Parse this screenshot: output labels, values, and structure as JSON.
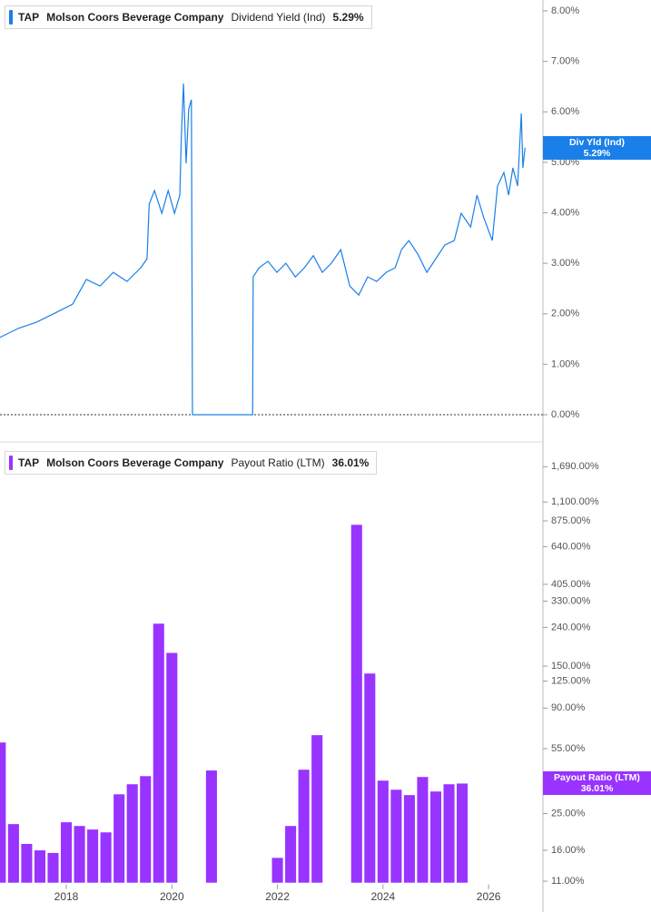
{
  "chart_data": [
    {
      "type": "line",
      "ticker": "TAP",
      "company": "Molson Coors Beverage Company",
      "x": [
        2016.74,
        2017.09,
        2017.43,
        2017.78,
        2018.12,
        2018.38,
        2018.64,
        2018.89,
        2019.15,
        2019.41,
        2019.53,
        2019.57,
        2019.67,
        2019.81,
        2019.93,
        2020.05,
        2020.15,
        2020.18,
        2020.22,
        2020.27,
        2020.32,
        2020.37,
        2020.39,
        2021.53,
        2021.54,
        2021.65,
        2021.82,
        2021.99,
        2022.16,
        2022.34,
        2022.51,
        2022.68,
        2022.85,
        2023.02,
        2023.2,
        2023.37,
        2023.54,
        2023.71,
        2023.88,
        2024.06,
        2024.23,
        2024.35,
        2024.49,
        2024.66,
        2024.83,
        2025.0,
        2025.17,
        2025.35,
        2025.48,
        2025.66,
        2025.78,
        2025.91,
        2026.07,
        2026.17,
        2026.29,
        2026.38,
        2026.46,
        2026.55,
        2026.62,
        2026.65,
        2026.69
      ],
      "series": [
        {
          "name": "Dividend Yield (Ind)",
          "short_name": "Div Yld (Ind)",
          "color": "#1a7fe8",
          "values": [
            1.53,
            1.71,
            1.83,
            2.01,
            2.19,
            2.68,
            2.55,
            2.82,
            2.64,
            2.91,
            3.09,
            4.17,
            4.44,
            3.99,
            4.44,
            3.99,
            4.35,
            5.52,
            6.56,
            4.98,
            6.06,
            6.24,
            0,
            0,
            2.73,
            2.91,
            3.04,
            2.82,
            3.0,
            2.73,
            2.91,
            3.15,
            2.82,
            3.0,
            3.27,
            2.55,
            2.37,
            2.73,
            2.64,
            2.82,
            2.91,
            3.27,
            3.45,
            3.18,
            2.82,
            3.09,
            3.36,
            3.45,
            3.99,
            3.72,
            4.35,
            3.9,
            3.45,
            4.53,
            4.8,
            4.35,
            4.89,
            4.53,
            5.97,
            4.89,
            5.29
          ],
          "last_value_label": "5.29%"
        }
      ],
      "xlim": [
        2016.744,
        2027.03
      ],
      "ylim": [
        0,
        8
      ],
      "yticks": [
        {
          "value": 0,
          "label": "0.00%"
        },
        {
          "value": 1,
          "label": "1.00%"
        },
        {
          "value": 2,
          "label": "2.00%"
        },
        {
          "value": 3,
          "label": "3.00%"
        },
        {
          "value": 4,
          "label": "4.00%"
        },
        {
          "value": 5,
          "label": "5.00%"
        },
        {
          "value": 6,
          "label": "6.00%"
        },
        {
          "value": 7,
          "label": "7.00%"
        },
        {
          "value": 8,
          "label": "8.00%"
        }
      ],
      "zero_line": true
    },
    {
      "type": "bar",
      "ticker": "TAP",
      "company": "Molson Coors Beverage Company",
      "x": [
        2016.75,
        2017.0,
        2017.25,
        2017.5,
        2017.75,
        2018.0,
        2018.25,
        2018.5,
        2018.75,
        2019.0,
        2019.25,
        2019.5,
        2019.75,
        2020.0,
        2020.25,
        2020.5,
        2020.75,
        2021.0,
        2021.25,
        2021.5,
        2021.75,
        2022.0,
        2022.25,
        2022.5,
        2022.75,
        2023.0,
        2023.25,
        2023.5,
        2023.75,
        2024.0,
        2024.25,
        2024.5,
        2024.75,
        2025.0,
        2025.25,
        2025.5
      ],
      "series": [
        {
          "name": "Payout Ratio (LTM)",
          "color": "#9933ff",
          "values": [
            59.3,
            22.0,
            17.3,
            16.0,
            15.5,
            22.5,
            21.5,
            20.6,
            19.9,
            31.6,
            35.7,
            39.4,
            251,
            176,
            null,
            null,
            42.2,
            null,
            null,
            null,
            null,
            14.6,
            21.5,
            42.6,
            64.8,
            null,
            null,
            834,
            137,
            37.3,
            33.4,
            31.3,
            39.0,
            32.7,
            35.7,
            36.01
          ],
          "last_value_label": "36.01%"
        }
      ],
      "xlim": [
        2016.744,
        2027.03
      ],
      "xticks": [
        2018,
        2020,
        2022,
        2024,
        2026
      ],
      "ylim": [
        10.8,
        2000
      ],
      "yscale": "log",
      "yticks": [
        {
          "value": 1690,
          "label": "1,690.00%"
        },
        {
          "value": 1100,
          "label": "1,100.00%"
        },
        {
          "value": 875,
          "label": "875.00%"
        },
        {
          "value": 640,
          "label": "640.00%"
        },
        {
          "value": 405,
          "label": "405.00%"
        },
        {
          "value": 330,
          "label": "330.00%"
        },
        {
          "value": 240,
          "label": "240.00%"
        },
        {
          "value": 150,
          "label": "150.00%"
        },
        {
          "value": 125,
          "label": "125.00%"
        },
        {
          "value": 90,
          "label": "90.00%"
        },
        {
          "value": 55,
          "label": "55.00%"
        },
        {
          "value": 25,
          "label": "25.00%"
        },
        {
          "value": 16,
          "label": "16.00%"
        },
        {
          "value": 11,
          "label": "11.00%"
        }
      ]
    }
  ]
}
